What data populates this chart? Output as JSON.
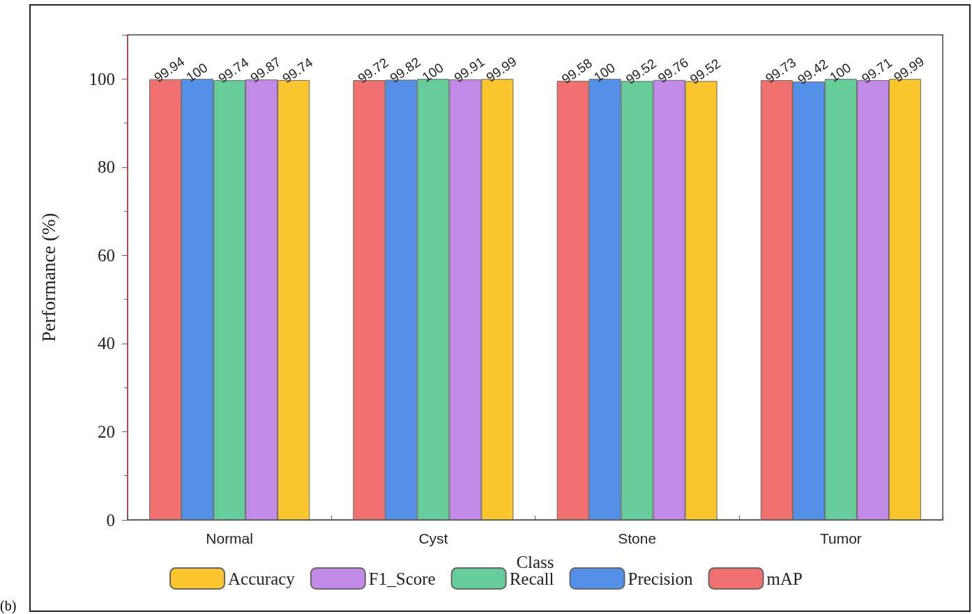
{
  "chart_data": {
    "type": "bar",
    "categories": [
      "Normal",
      "Cyst",
      "Stone",
      "Tumor"
    ],
    "series": [
      {
        "name": "mAP",
        "color": "#f07070",
        "values": [
          99.94,
          99.72,
          99.58,
          99.73
        ]
      },
      {
        "name": "Precision",
        "color": "#5590e8",
        "values": [
          100,
          99.82,
          100,
          99.42
        ]
      },
      {
        "name": "Recall",
        "color": "#66cc99",
        "values": [
          99.74,
          100,
          99.52,
          100
        ]
      },
      {
        "name": "F1_Score",
        "color": "#c08ae6",
        "values": [
          99.87,
          99.91,
          99.76,
          99.71
        ]
      },
      {
        "name": "Accuracy",
        "color": "#fbc52e",
        "values": [
          99.74,
          99.99,
          99.52,
          99.99
        ]
      }
    ],
    "xlabel": "Class",
    "ylabel": "Performance (%)",
    "ylim": [
      0,
      110
    ],
    "yticks": [
      0,
      20,
      40,
      60,
      80,
      100
    ],
    "grid": false,
    "legend": "bottom",
    "data_labels": true,
    "annotations": [
      "(b)"
    ]
  }
}
